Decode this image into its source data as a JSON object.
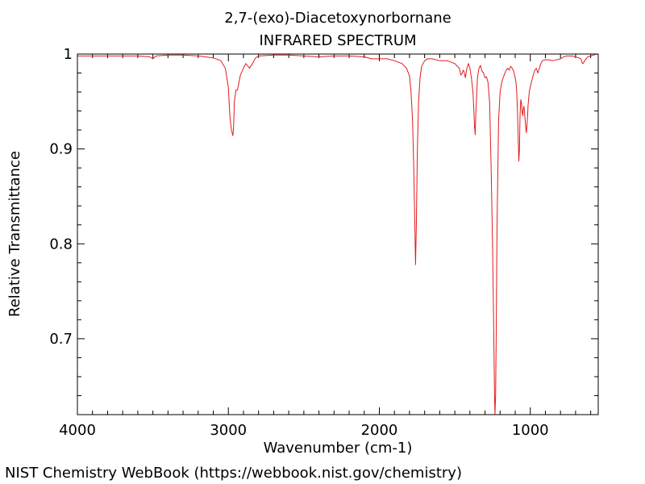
{
  "chart_data": {
    "type": "line",
    "title": "2,7-(exo)-Diacetoxynorbornane",
    "subtitle": "INFRARED SPECTRUM",
    "xlabel": "Wavenumber (cm-1)",
    "ylabel": "Relative Transmittance",
    "xlim": [
      4000,
      550
    ],
    "ylim": [
      0.62,
      1.0
    ],
    "x_ticks": [
      4000,
      3000,
      2000,
      1000
    ],
    "x_tick_labels": [
      "4000",
      "3000",
      "2000",
      "1000"
    ],
    "y_ticks": [
      0.7,
      0.8,
      0.9,
      1.0
    ],
    "y_tick_labels": [
      "0.7",
      "0.8",
      "0.9",
      "1"
    ],
    "grid": false,
    "line_color": "#e31a1c",
    "series": [
      {
        "x": [
          4000,
          3900,
          3800,
          3700,
          3600,
          3520,
          3500,
          3480,
          3400,
          3300,
          3200,
          3100,
          3050,
          3020,
          3000,
          2990,
          2980,
          2970,
          2965,
          2960,
          2950,
          2940,
          2930,
          2920,
          2900,
          2885,
          2875,
          2860,
          2840,
          2820,
          2800,
          2700,
          2600,
          2500,
          2400,
          2300,
          2200,
          2100,
          2050,
          2000,
          1950,
          1900,
          1850,
          1820,
          1800,
          1790,
          1780,
          1772,
          1765,
          1760,
          1755,
          1748,
          1740,
          1730,
          1720,
          1700,
          1680,
          1650,
          1600,
          1550,
          1500,
          1470,
          1460,
          1450,
          1445,
          1440,
          1430,
          1420,
          1410,
          1400,
          1390,
          1380,
          1375,
          1370,
          1365,
          1360,
          1350,
          1340,
          1330,
          1320,
          1310,
          1300,
          1290,
          1280,
          1270,
          1265,
          1258,
          1250,
          1245,
          1240,
          1237,
          1234,
          1230,
          1226,
          1220,
          1210,
          1200,
          1190,
          1180,
          1170,
          1160,
          1150,
          1140,
          1130,
          1120,
          1110,
          1100,
          1095,
          1090,
          1085,
          1080,
          1076,
          1072,
          1068,
          1063,
          1058,
          1055,
          1050,
          1046,
          1042,
          1038,
          1034,
          1030,
          1026,
          1022,
          1018,
          1015,
          1010,
          1005,
          1000,
          990,
          980,
          970,
          960,
          950,
          940,
          930,
          920,
          900,
          880,
          850,
          800,
          780,
          760,
          740,
          720,
          700,
          680,
          665,
          660,
          655,
          650,
          640,
          630,
          620,
          600,
          580,
          560,
          550
        ],
        "y": [
          0.998,
          0.998,
          0.998,
          0.998,
          0.998,
          0.997,
          0.995,
          0.998,
          0.999,
          0.999,
          0.998,
          0.996,
          0.993,
          0.985,
          0.965,
          0.935,
          0.92,
          0.914,
          0.925,
          0.95,
          0.962,
          0.962,
          0.97,
          0.978,
          0.985,
          0.99,
          0.988,
          0.985,
          0.99,
          0.996,
          0.998,
          0.999,
          0.999,
          0.998,
          0.997,
          0.998,
          0.998,
          0.997,
          0.995,
          0.995,
          0.995,
          0.993,
          0.99,
          0.985,
          0.977,
          0.96,
          0.93,
          0.88,
          0.82,
          0.778,
          0.82,
          0.9,
          0.95,
          0.975,
          0.987,
          0.993,
          0.995,
          0.995,
          0.993,
          0.993,
          0.99,
          0.985,
          0.978,
          0.98,
          0.983,
          0.982,
          0.975,
          0.985,
          0.99,
          0.985,
          0.975,
          0.96,
          0.945,
          0.925,
          0.915,
          0.94,
          0.975,
          0.985,
          0.988,
          0.982,
          0.98,
          0.975,
          0.976,
          0.97,
          0.95,
          0.92,
          0.87,
          0.8,
          0.74,
          0.68,
          0.64,
          0.615,
          0.64,
          0.7,
          0.82,
          0.93,
          0.96,
          0.97,
          0.975,
          0.979,
          0.983,
          0.985,
          0.983,
          0.987,
          0.985,
          0.982,
          0.975,
          0.97,
          0.96,
          0.94,
          0.91,
          0.887,
          0.9,
          0.935,
          0.952,
          0.948,
          0.94,
          0.935,
          0.942,
          0.945,
          0.938,
          0.93,
          0.922,
          0.917,
          0.925,
          0.935,
          0.945,
          0.955,
          0.962,
          0.965,
          0.972,
          0.978,
          0.983,
          0.985,
          0.98,
          0.985,
          0.99,
          0.993,
          0.994,
          0.994,
          0.993,
          0.995,
          0.997,
          0.998,
          0.998,
          0.998,
          0.997,
          0.996,
          0.995,
          0.993,
          0.99,
          0.99,
          0.993,
          0.995,
          0.997,
          0.998,
          0.999,
          1.0,
          1.0
        ]
      }
    ]
  },
  "footer": {
    "credit": "NIST Chemistry WebBook (https://webbook.nist.gov/chemistry)"
  }
}
